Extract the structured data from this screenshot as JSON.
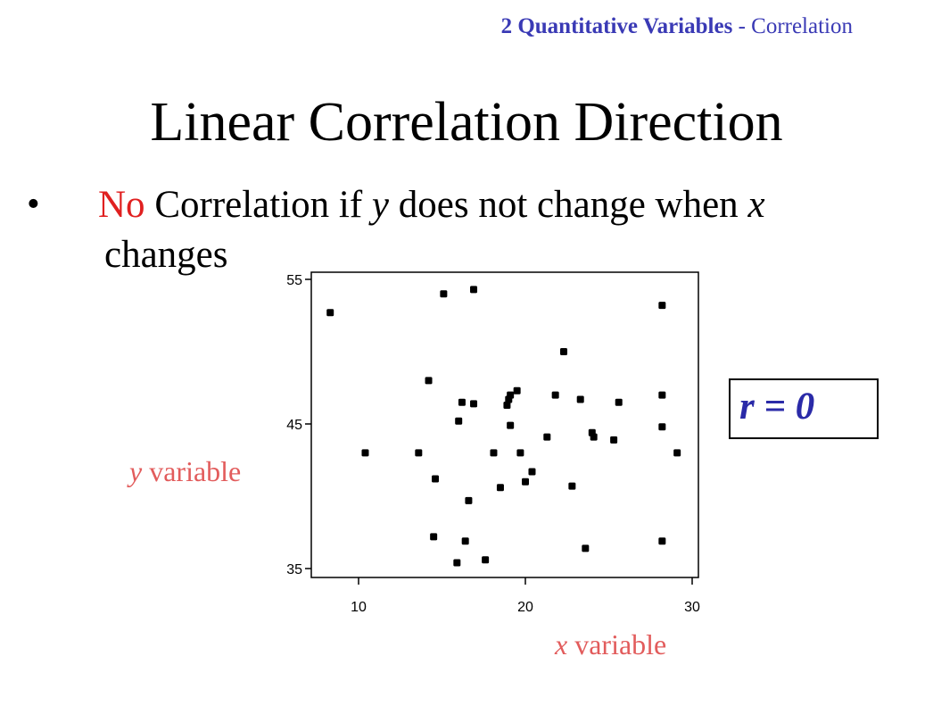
{
  "header": {
    "bold_part": "2 Quantitative Variables",
    "rest": " - Correlation"
  },
  "title": "Linear Correlation Direction",
  "bullet": {
    "symbol": "•",
    "highlight": "No",
    "text_a": " Correlation if ",
    "var_y": "y",
    "text_b": " does not change when ",
    "var_x": "x",
    "line2": "changes"
  },
  "r_box": "r = 0",
  "colors": {
    "header": "#3a3ab5",
    "highlight": "#e02020",
    "axis_label": "#e25c5c",
    "r_text": "#2a2aa8",
    "points": "#000000"
  },
  "chart_data": {
    "type": "scatter",
    "xlabel": "x variable",
    "ylabel": "y variable",
    "xlim": [
      7.5,
      30.5
    ],
    "ylim": [
      35,
      55
    ],
    "xticks": [
      10,
      20,
      30
    ],
    "yticks": [
      35,
      45,
      55
    ],
    "grid": false,
    "points": [
      [
        8.3,
        52.7
      ],
      [
        10.4,
        43.0
      ],
      [
        13.6,
        43.0
      ],
      [
        14.2,
        48.0
      ],
      [
        14.5,
        37.2
      ],
      [
        14.6,
        41.2
      ],
      [
        15.1,
        54.0
      ],
      [
        15.9,
        35.4
      ],
      [
        16.0,
        45.2
      ],
      [
        16.2,
        46.5
      ],
      [
        16.4,
        36.9
      ],
      [
        16.6,
        39.7
      ],
      [
        16.9,
        54.3
      ],
      [
        16.9,
        46.4
      ],
      [
        17.6,
        35.6
      ],
      [
        18.1,
        43.0
      ],
      [
        18.5,
        40.6
      ],
      [
        18.9,
        46.3
      ],
      [
        19.0,
        46.7
      ],
      [
        19.1,
        47.0
      ],
      [
        19.1,
        44.9
      ],
      [
        19.5,
        47.3
      ],
      [
        19.7,
        43.0
      ],
      [
        20.0,
        41.0
      ],
      [
        20.4,
        41.7
      ],
      [
        21.3,
        44.1
      ],
      [
        21.8,
        47.0
      ],
      [
        22.3,
        50.0
      ],
      [
        22.8,
        40.7
      ],
      [
        23.3,
        46.7
      ],
      [
        23.6,
        36.4
      ],
      [
        24.0,
        44.4
      ],
      [
        24.1,
        44.1
      ],
      [
        25.3,
        43.9
      ],
      [
        25.6,
        46.5
      ],
      [
        28.2,
        53.2
      ],
      [
        28.2,
        47.0
      ],
      [
        28.2,
        44.8
      ],
      [
        28.2,
        36.9
      ],
      [
        29.1,
        43.0
      ]
    ]
  }
}
